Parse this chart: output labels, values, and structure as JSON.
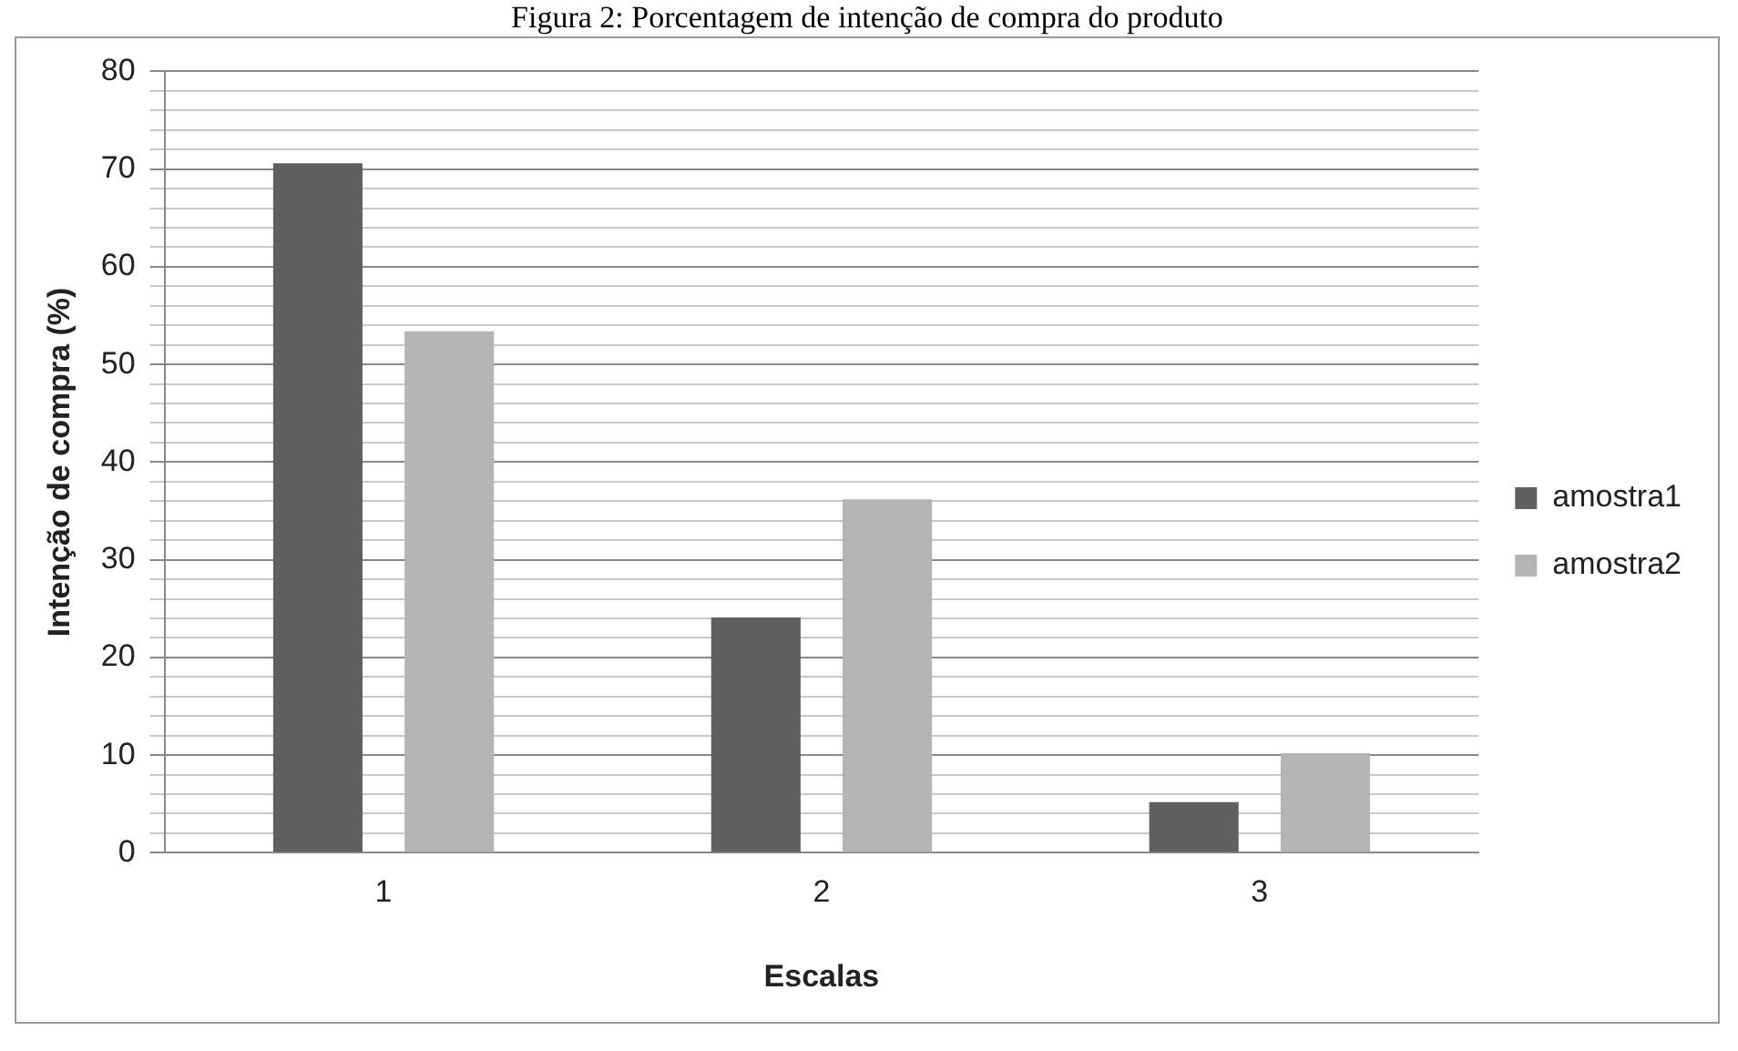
{
  "chart_data": {
    "type": "bar",
    "title": "Figura 2: Porcentagem de intenção de compra do produto",
    "xlabel": "Escalas",
    "ylabel": "Intenção de compra (%)",
    "categories": [
      "1",
      "2",
      "3"
    ],
    "series": [
      {
        "name": "amostra1",
        "color": "#606060",
        "values": [
          70.6,
          24.1,
          5.2
        ]
      },
      {
        "name": "amostra2",
        "color": "#b4b4b4",
        "values": [
          53.4,
          36.2,
          10.2
        ]
      }
    ],
    "ylim": [
      0,
      80
    ],
    "yticks": [
      0,
      {
        "value": 2,
        "label": null
      },
      {
        "value": 4,
        "label": null
      },
      {
        "value": 6,
        "label": null
      },
      {
        "value": 8,
        "label": null
      },
      10,
      {
        "value": 12,
        "label": null
      },
      {
        "value": 14,
        "label": null
      },
      {
        "value": 16,
        "label": null
      },
      {
        "value": 18,
        "label": null
      },
      20,
      {
        "value": 22,
        "label": null
      },
      {
        "value": 24,
        "label": null
      },
      {
        "value": 26,
        "label": null
      },
      {
        "value": 28,
        "label": null
      },
      30,
      {
        "value": 32,
        "label": null
      },
      {
        "value": 34,
        "label": null
      },
      {
        "value": 36,
        "label": null
      },
      {
        "value": 38,
        "label": null
      },
      40,
      {
        "value": 42,
        "label": null
      },
      {
        "value": 44,
        "label": null
      },
      {
        "value": 46,
        "label": null
      },
      {
        "value": 48,
        "label": null
      },
      50,
      {
        "value": 52,
        "label": null
      },
      {
        "value": 54,
        "label": null
      },
      {
        "value": 56,
        "label": null
      },
      {
        "value": 58,
        "label": null
      },
      60,
      {
        "value": 62,
        "label": null
      },
      {
        "value": 64,
        "label": null
      },
      {
        "value": 66,
        "label": null
      },
      {
        "value": 68,
        "label": null
      },
      70,
      {
        "value": 72,
        "label": null
      },
      {
        "value": 74,
        "label": null
      },
      {
        "value": 76,
        "label": null
      },
      {
        "value": 78,
        "label": null
      },
      80
    ],
    "grid": "y",
    "legend": "right"
  }
}
